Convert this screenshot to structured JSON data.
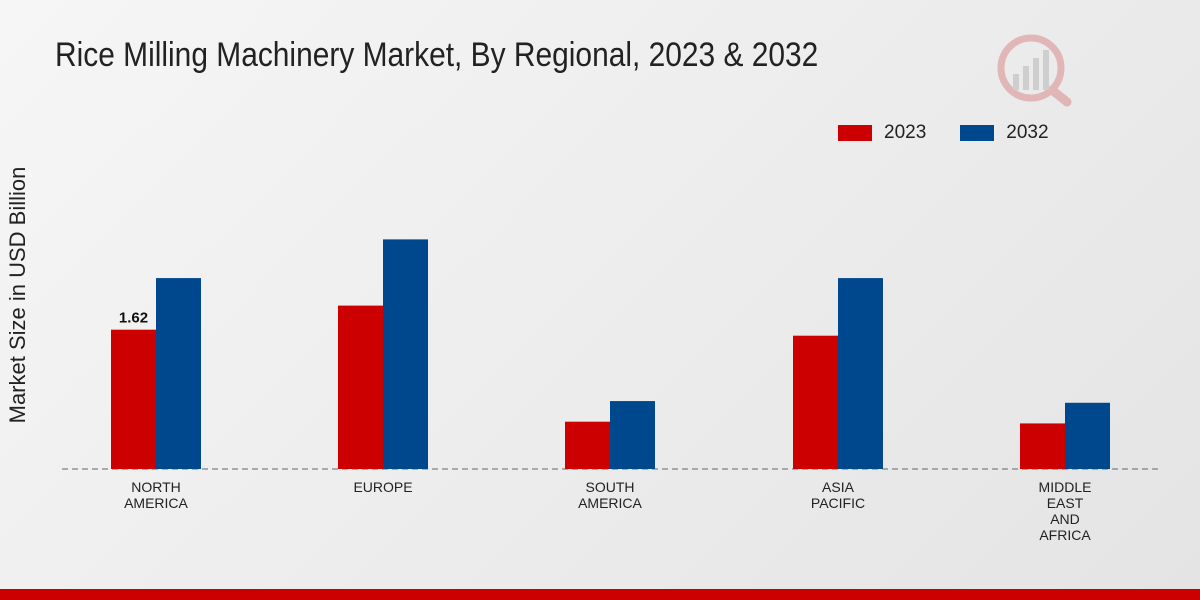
{
  "chart_data": {
    "type": "bar",
    "title": "Rice Milling Machinery Market, By Regional, 2023 & 2032",
    "ylabel": "Market Size in USD Billion",
    "xlabel": "",
    "categories": [
      [
        "NORTH",
        "AMERICA"
      ],
      [
        "EUROPE"
      ],
      [
        "SOUTH",
        "AMERICA"
      ],
      [
        "ASIA",
        "PACIFIC"
      ],
      [
        "MIDDLE",
        "EAST",
        "AND",
        "AFRICA"
      ]
    ],
    "series": [
      {
        "name": "2023",
        "color": "#cc0000",
        "values": [
          1.62,
          1.9,
          0.55,
          1.55,
          0.53
        ]
      },
      {
        "name": "2032",
        "color": "#00488d",
        "values": [
          2.22,
          2.67,
          0.79,
          2.22,
          0.77
        ]
      }
    ],
    "data_labels": [
      {
        "series": 0,
        "index": 0,
        "text": "1.62"
      }
    ],
    "ylim": [
      0,
      4.0
    ],
    "legend_position": "top-right",
    "grid": false
  }
}
